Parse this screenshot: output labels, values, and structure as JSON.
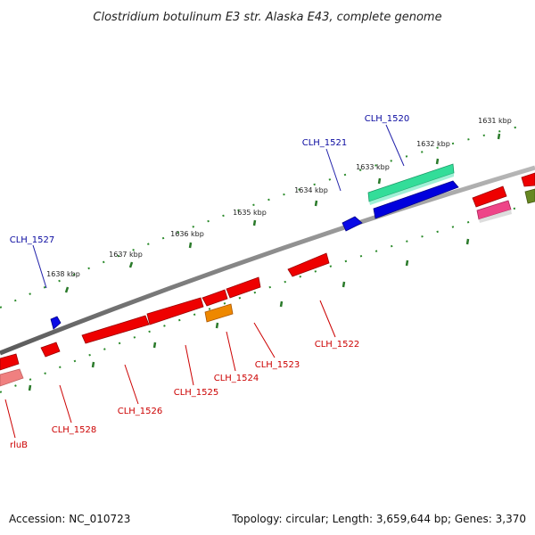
{
  "title": "Clostridium botulinum E3 str. Alaska E43, complete genome",
  "footer": {
    "accession": "Accession: NC_010723",
    "summary": "Topology: circular; Length: 3,659,644 bp; Genes: 3,370"
  },
  "ticks": [
    {
      "label": "1631 kbp",
      "kbp": 1631
    },
    {
      "label": "1632 kbp",
      "kbp": 1632
    },
    {
      "label": "1633 kbp",
      "kbp": 1633
    },
    {
      "label": "1634 kbp",
      "kbp": 1634
    },
    {
      "label": "1635 kbp",
      "kbp": 1635
    },
    {
      "label": "1636 kbp",
      "kbp": 1636
    },
    {
      "label": "1637 kbp",
      "kbp": 1637
    },
    {
      "label": "1638 kbp",
      "kbp": 1638
    }
  ],
  "genes": [
    {
      "name": "CLH_1520",
      "strand": "forward"
    },
    {
      "name": "CLH_1521",
      "strand": "forward"
    },
    {
      "name": "CLH_1527",
      "strand": "forward"
    },
    {
      "name": "CLH_1522",
      "strand": "reverse"
    },
    {
      "name": "CLH_1523",
      "strand": "reverse"
    },
    {
      "name": "CLH_1524",
      "strand": "reverse"
    },
    {
      "name": "CLH_1525",
      "strand": "reverse"
    },
    {
      "name": "CLH_1526",
      "strand": "reverse"
    },
    {
      "name": "CLH_1528",
      "strand": "reverse"
    },
    {
      "name": "rluB",
      "strand": "reverse"
    }
  ],
  "colors": {
    "backbone": "#808080",
    "forward_label": "#0a0aa0",
    "reverse_label": "#cc0000",
    "cds_red": "#ee0000",
    "cds_blue": "#0000dd",
    "cds_teal": "#33dd99",
    "cds_orange": "#ee8800",
    "cds_pink": "#ee4488",
    "cds_olive": "#668822",
    "tick_green": "#228822"
  }
}
